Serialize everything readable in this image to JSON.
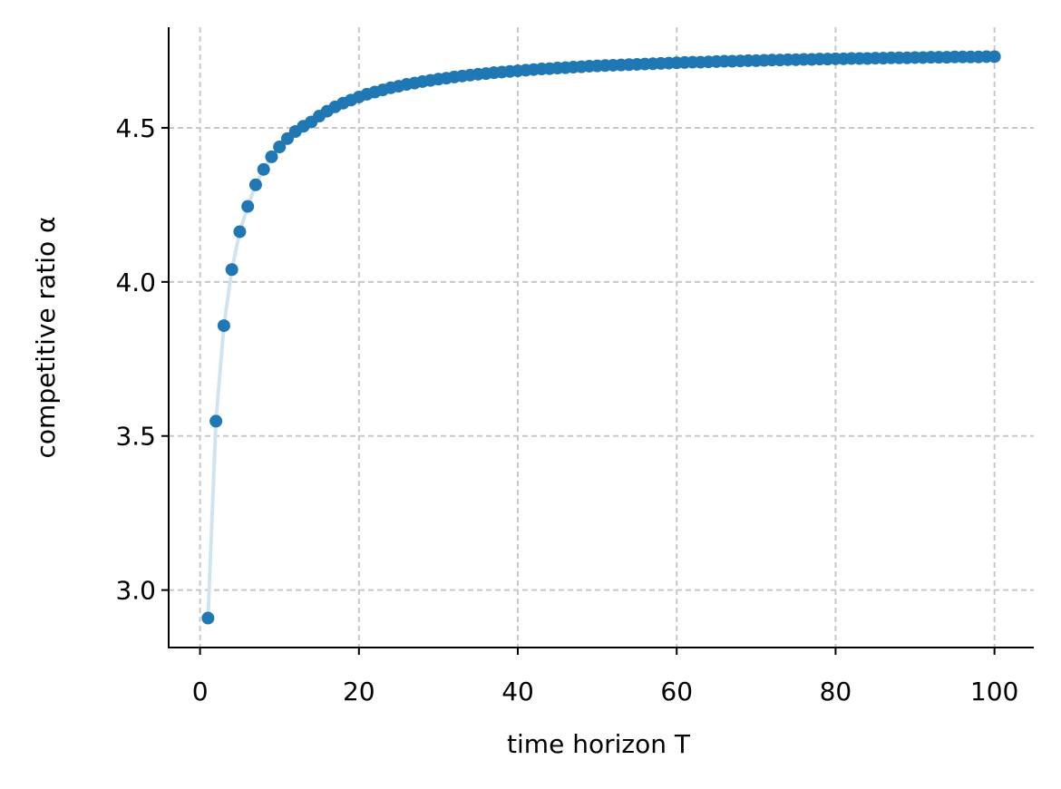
{
  "chart_data": {
    "type": "line",
    "xlabel": "time horizon T",
    "ylabel": "competitive ratio α",
    "x": [
      1,
      2,
      3,
      4,
      5,
      6,
      7,
      8,
      9,
      10,
      11,
      12,
      13,
      14,
      15,
      16,
      17,
      18,
      19,
      20,
      21,
      22,
      23,
      24,
      25,
      26,
      27,
      28,
      29,
      30,
      31,
      32,
      33,
      34,
      35,
      36,
      37,
      38,
      39,
      40,
      41,
      42,
      43,
      44,
      45,
      46,
      47,
      48,
      49,
      50,
      51,
      52,
      53,
      54,
      55,
      56,
      57,
      58,
      59,
      60,
      61,
      62,
      63,
      64,
      65,
      66,
      67,
      68,
      69,
      70,
      71,
      72,
      73,
      74,
      75,
      76,
      77,
      78,
      79,
      80,
      81,
      82,
      83,
      84,
      85,
      86,
      87,
      88,
      89,
      90,
      91,
      92,
      93,
      94,
      95,
      96,
      97,
      98,
      99,
      100
    ],
    "values": [
      2.909,
      3.548,
      3.858,
      4.04,
      4.163,
      4.245,
      4.315,
      4.365,
      4.406,
      4.438,
      4.465,
      4.488,
      4.505,
      4.519,
      4.538,
      4.554,
      4.568,
      4.58,
      4.59,
      4.6,
      4.609,
      4.616,
      4.623,
      4.63,
      4.635,
      4.641,
      4.645,
      4.65,
      4.654,
      4.658,
      4.661,
      4.665,
      4.668,
      4.671,
      4.674,
      4.676,
      4.679,
      4.681,
      4.683,
      4.685,
      4.687,
      4.689,
      4.691,
      4.692,
      4.694,
      4.695,
      4.697,
      4.698,
      4.7,
      4.701,
      4.702,
      4.703,
      4.704,
      4.705,
      4.706,
      4.707,
      4.708,
      4.709,
      4.71,
      4.711,
      4.712,
      4.713,
      4.713,
      4.714,
      4.715,
      4.716,
      4.716,
      4.717,
      4.718,
      4.718,
      4.719,
      4.72,
      4.72,
      4.721,
      4.721,
      4.722,
      4.722,
      4.723,
      4.723,
      4.724,
      4.724,
      4.725,
      4.725,
      4.725,
      4.726,
      4.726,
      4.727,
      4.727,
      4.727,
      4.728,
      4.728,
      4.729,
      4.729,
      4.729,
      4.73,
      4.73,
      4.73,
      4.73,
      4.731,
      4.731
    ],
    "color": "#1f77b4",
    "line_color": "#d2e3f0",
    "xlim": [
      -3.95,
      104.95
    ],
    "ylim": [
      2.8135,
      4.8265
    ],
    "xticks": [
      0,
      20,
      40,
      60,
      80,
      100
    ],
    "yticks": [
      {
        "value": 3,
        "label": "3.0"
      },
      3.5,
      {
        "value": 4,
        "label": "4.0"
      },
      4.5
    ],
    "grid": true
  }
}
